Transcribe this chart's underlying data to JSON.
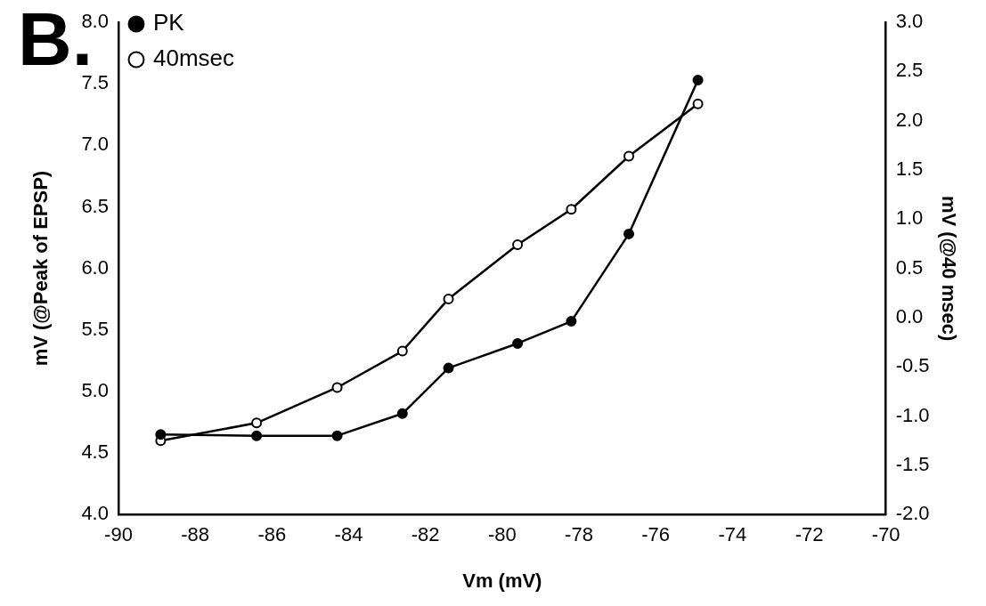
{
  "chart_data": {
    "type": "line",
    "xlabel": "Vm (mV)",
    "ylabel": "mV (@Peak of EPSP)",
    "y2label": "mV (@40 msec)",
    "annotations": [
      "B."
    ],
    "x": [
      -88.9,
      -86.4,
      -84.3,
      -82.6,
      -81.4,
      -79.6,
      -78.2,
      -76.7,
      -74.9
    ],
    "series": [
      {
        "name": "PK",
        "color": "#000000",
        "values": [
          4.65,
          4.64,
          4.64,
          4.82,
          5.19,
          5.39,
          5.57,
          6.28,
          7.53
        ]
      },
      {
        "name": "40msec",
        "color": "#000000",
        "axis": "y2",
        "values": [
          -1.25,
          -1.07,
          -0.71,
          -0.34,
          0.19,
          0.74,
          1.1,
          1.64,
          2.17
        ]
      }
    ],
    "xlim": [
      -90,
      -70
    ],
    "xticks": [
      -90,
      -88,
      -86,
      -84,
      -82,
      -80,
      -78,
      -76,
      -74,
      -72,
      -70
    ],
    "ylim": [
      4,
      8
    ],
    "yticks": [
      {
        "value": 4,
        "label": "4.0"
      },
      4.5,
      {
        "value": 5,
        "label": "5.0"
      },
      5.5,
      {
        "value": 6,
        "label": "6.0"
      },
      6.5,
      {
        "value": 7,
        "label": "7.0"
      },
      7.5,
      {
        "value": 8,
        "label": "8.0"
      }
    ],
    "y2lim": [
      -2,
      3
    ],
    "y2ticks": [
      {
        "value": -2,
        "label": "-2.0"
      },
      -1.5,
      {
        "value": -1,
        "label": "-1.0"
      },
      -0.5,
      {
        "value": 0,
        "label": "0.0"
      },
      0.5,
      {
        "value": 1,
        "label": "1.0"
      },
      1.5,
      {
        "value": 2,
        "label": "2.0"
      },
      2.5,
      {
        "value": 3,
        "label": "3.0"
      }
    ],
    "grid": false,
    "legend": "top left",
    "marker": "circle",
    "line_style": "solid"
  }
}
